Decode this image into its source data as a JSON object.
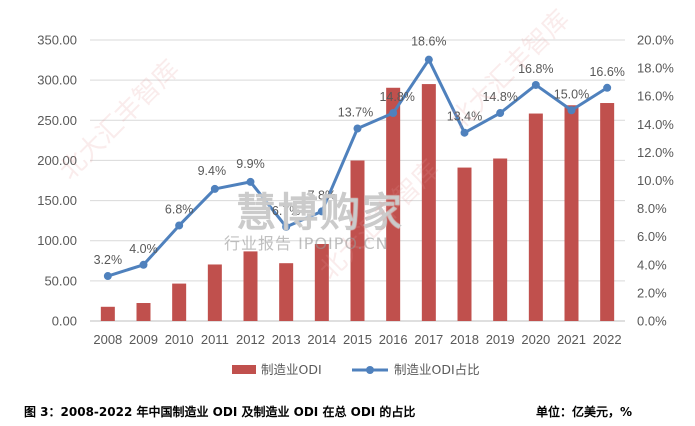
{
  "chart_data": {
    "type": "bar+line",
    "categories": [
      "2008",
      "2009",
      "2010",
      "2011",
      "2012",
      "2013",
      "2014",
      "2015",
      "2016",
      "2017",
      "2018",
      "2019",
      "2020",
      "2021",
      "2022"
    ],
    "series": [
      {
        "name": "制造业ODI",
        "type": "bar",
        "axis": "left",
        "color": "#C0504D",
        "values": [
          17.7,
          22.4,
          46.6,
          70.4,
          86.7,
          72.0,
          95.9,
          199.9,
          290.5,
          295.1,
          191.1,
          202.4,
          258.4,
          268.7,
          271.5
        ]
      },
      {
        "name": "制造业ODI占比",
        "type": "line",
        "axis": "right",
        "color": "#4F81BD",
        "values": [
          3.2,
          4.0,
          6.8,
          9.4,
          9.9,
          6.7,
          7.8,
          13.7,
          14.8,
          18.6,
          13.4,
          14.8,
          16.8,
          15.0,
          16.6
        ],
        "labels": [
          "3.2%",
          "4.0%",
          "6.8%",
          "9.4%",
          "9.9%",
          "6.7%",
          "7.8%",
          "13.7%",
          "14.8%",
          "18.6%",
          "13.4%",
          "14.8%",
          "16.8%",
          "15.0%",
          "16.6%"
        ]
      }
    ],
    "y_left": {
      "ylim": [
        0,
        350
      ],
      "ticks": [
        "0.00",
        "50.00",
        "100.00",
        "150.00",
        "200.00",
        "250.00",
        "300.00",
        "350.00"
      ]
    },
    "y_right": {
      "ylim": [
        0,
        20
      ],
      "ticks": [
        "0.0%",
        "2.0%",
        "4.0%",
        "6.0%",
        "8.0%",
        "10.0%",
        "12.0%",
        "14.0%",
        "16.0%",
        "18.0%",
        "20.0%"
      ]
    },
    "grid": true,
    "legend": {
      "position": "bottom"
    }
  },
  "caption": {
    "title": "图 3：2008-2022 年中国制造业 ODI 及制造业 ODI 在总 ODI 的占比",
    "unit": "单位：亿美元，%"
  },
  "watermark": {
    "main": "慧博购家",
    "sub": "行业报告 IPOIPO.CN",
    "diagonal": "北大汇丰智库"
  }
}
